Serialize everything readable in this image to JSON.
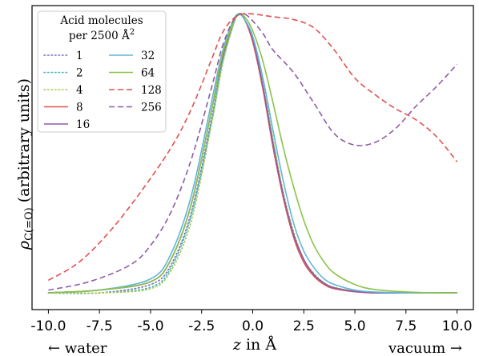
{
  "chart_data": {
    "type": "line",
    "title": "",
    "xlabel_var": "z",
    "xlabel_rest": " in Å",
    "ylabel_main": "ρ",
    "ylabel_sub": "C(=O)",
    "ylabel_rest": " (arbitrary units)",
    "xlim": [
      -10.8,
      10.8
    ],
    "ylim": [
      -0.06,
      1.03
    ],
    "xticks": [
      -10.0,
      -7.5,
      -5.0,
      -2.5,
      0.0,
      2.5,
      5.0,
      7.5,
      10.0
    ],
    "xtick_labels": [
      "-10.0",
      "-7.5",
      "-5.0",
      "-2.5",
      "0.0",
      "2.5",
      "5.0",
      "7.5",
      "10.0"
    ],
    "yticks_visible": false,
    "grid": false,
    "side_labels": {
      "left": "← water",
      "right": "vacuum →"
    },
    "legend": {
      "placement": "top-left",
      "title_line1": "Acid molecules",
      "title_line2": "per 2500 Å",
      "title_sup": "2",
      "columns": 2
    },
    "series": [
      {
        "name": "1",
        "color": "#7b6fb8",
        "dash": "dotted",
        "x": [
          -10,
          -7.5,
          -5,
          -4,
          -3,
          -2,
          -1.5,
          -1,
          -0.7,
          -0.4,
          0,
          0.5,
          1,
          1.5,
          2,
          2.5,
          3,
          3.5,
          4,
          5,
          6,
          8,
          10
        ],
        "y": [
          0.0,
          0.0,
          0.03,
          0.1,
          0.29,
          0.63,
          0.82,
          0.95,
          1.0,
          0.98,
          0.91,
          0.74,
          0.53,
          0.34,
          0.2,
          0.11,
          0.06,
          0.03,
          0.015,
          0.005,
          0.0,
          0.0,
          0.0
        ]
      },
      {
        "name": "2",
        "color": "#3bbcc4",
        "dash": "dotted",
        "x": [
          -10,
          -7.5,
          -5,
          -4,
          -3,
          -2,
          -1.5,
          -1,
          -0.7,
          -0.4,
          0,
          0.5,
          1,
          1.5,
          2,
          2.5,
          3,
          3.5,
          4,
          5,
          6,
          8,
          10
        ],
        "y": [
          0.0,
          0.0,
          0.02,
          0.09,
          0.28,
          0.62,
          0.82,
          0.95,
          1.0,
          0.98,
          0.91,
          0.74,
          0.54,
          0.35,
          0.21,
          0.12,
          0.065,
          0.035,
          0.018,
          0.006,
          0.0,
          0.0,
          0.0
        ]
      },
      {
        "name": "4",
        "color": "#a8c84a",
        "dash": "dotted",
        "x": [
          -10,
          -7.5,
          -5,
          -4,
          -3,
          -2,
          -1.5,
          -1,
          -0.7,
          -0.4,
          0,
          0.5,
          1,
          1.5,
          2,
          2.5,
          3,
          3.5,
          4,
          5,
          6,
          8,
          10
        ],
        "y": [
          0.0,
          0.0,
          0.015,
          0.08,
          0.26,
          0.61,
          0.81,
          0.95,
          1.0,
          0.98,
          0.91,
          0.75,
          0.55,
          0.36,
          0.22,
          0.12,
          0.07,
          0.035,
          0.02,
          0.006,
          0.0,
          0.0,
          0.0
        ]
      },
      {
        "name": "8",
        "color": "#e0514f",
        "dash": "solid",
        "x": [
          -10,
          -7.5,
          -5,
          -4,
          -3,
          -2,
          -1.5,
          -1,
          -0.7,
          -0.4,
          0,
          0.5,
          1,
          1.5,
          2,
          2.5,
          3,
          3.5,
          4,
          5,
          6,
          8,
          10
        ],
        "y": [
          0.0,
          0.01,
          0.04,
          0.12,
          0.32,
          0.66,
          0.84,
          0.96,
          1.0,
          0.98,
          0.9,
          0.73,
          0.52,
          0.34,
          0.2,
          0.11,
          0.06,
          0.03,
          0.015,
          0.004,
          0.0,
          0.0,
          0.0
        ]
      },
      {
        "name": "16",
        "color": "#8d5ca8",
        "dash": "solid",
        "x": [
          -10,
          -7.5,
          -5,
          -4,
          -3,
          -2,
          -1.5,
          -1,
          -0.7,
          -0.4,
          0,
          0.5,
          1,
          1.5,
          2,
          2.5,
          3,
          3.5,
          4,
          5,
          6,
          8,
          10
        ],
        "y": [
          0.0,
          0.01,
          0.04,
          0.12,
          0.32,
          0.66,
          0.84,
          0.96,
          1.0,
          0.98,
          0.91,
          0.74,
          0.53,
          0.35,
          0.21,
          0.12,
          0.065,
          0.035,
          0.018,
          0.005,
          0.0,
          0.0,
          0.0
        ]
      },
      {
        "name": "32",
        "color": "#5fb6d9",
        "dash": "solid",
        "x": [
          -10,
          -7.5,
          -5,
          -4,
          -3,
          -2,
          -1.5,
          -1,
          -0.7,
          -0.4,
          0,
          0.5,
          1,
          1.5,
          2,
          2.5,
          3,
          3.5,
          4,
          5,
          6,
          8,
          10
        ],
        "y": [
          0.0,
          0.01,
          0.05,
          0.14,
          0.35,
          0.69,
          0.86,
          0.97,
          1.0,
          0.98,
          0.92,
          0.77,
          0.58,
          0.4,
          0.25,
          0.15,
          0.09,
          0.05,
          0.03,
          0.01,
          0.003,
          0.0,
          0.0
        ]
      },
      {
        "name": "64",
        "color": "#8bc34a",
        "dash": "solid",
        "x": [
          -10,
          -7.5,
          -5,
          -4,
          -3,
          -2,
          -1.5,
          -1,
          -0.7,
          -0.4,
          0,
          0.5,
          1,
          1.5,
          2,
          2.5,
          3,
          3.5,
          4,
          5,
          6,
          8,
          10
        ],
        "y": [
          0.0,
          0.01,
          0.04,
          0.12,
          0.32,
          0.66,
          0.85,
          0.96,
          1.0,
          0.99,
          0.94,
          0.83,
          0.68,
          0.52,
          0.38,
          0.26,
          0.17,
          0.11,
          0.07,
          0.03,
          0.012,
          0.002,
          0.0
        ]
      },
      {
        "name": "128",
        "color": "#e0514f",
        "dash": "dashed",
        "x": [
          -10,
          -8.5,
          -7,
          -5.5,
          -4,
          -3,
          -2,
          -1.5,
          -1,
          -0.5,
          0,
          1,
          2,
          3,
          4,
          5,
          6,
          7,
          8,
          9,
          10
        ],
        "y": [
          0.045,
          0.11,
          0.22,
          0.36,
          0.52,
          0.66,
          0.84,
          0.93,
          0.98,
          1.0,
          1.0,
          0.99,
          0.98,
          0.95,
          0.87,
          0.77,
          0.71,
          0.66,
          0.62,
          0.56,
          0.47
        ]
      },
      {
        "name": "256",
        "color": "#8d5ca8",
        "dash": "dashed",
        "x": [
          -10,
          -8,
          -6,
          -5,
          -4,
          -3,
          -2,
          -1.5,
          -1,
          -0.6,
          -0.2,
          0.5,
          1,
          2,
          3,
          4,
          5,
          6,
          7,
          8,
          9,
          10
        ],
        "y": [
          0.01,
          0.04,
          0.1,
          0.17,
          0.29,
          0.48,
          0.74,
          0.88,
          0.97,
          1.0,
          0.99,
          0.93,
          0.87,
          0.79,
          0.68,
          0.57,
          0.53,
          0.54,
          0.59,
          0.67,
          0.74,
          0.82
        ]
      }
    ]
  }
}
